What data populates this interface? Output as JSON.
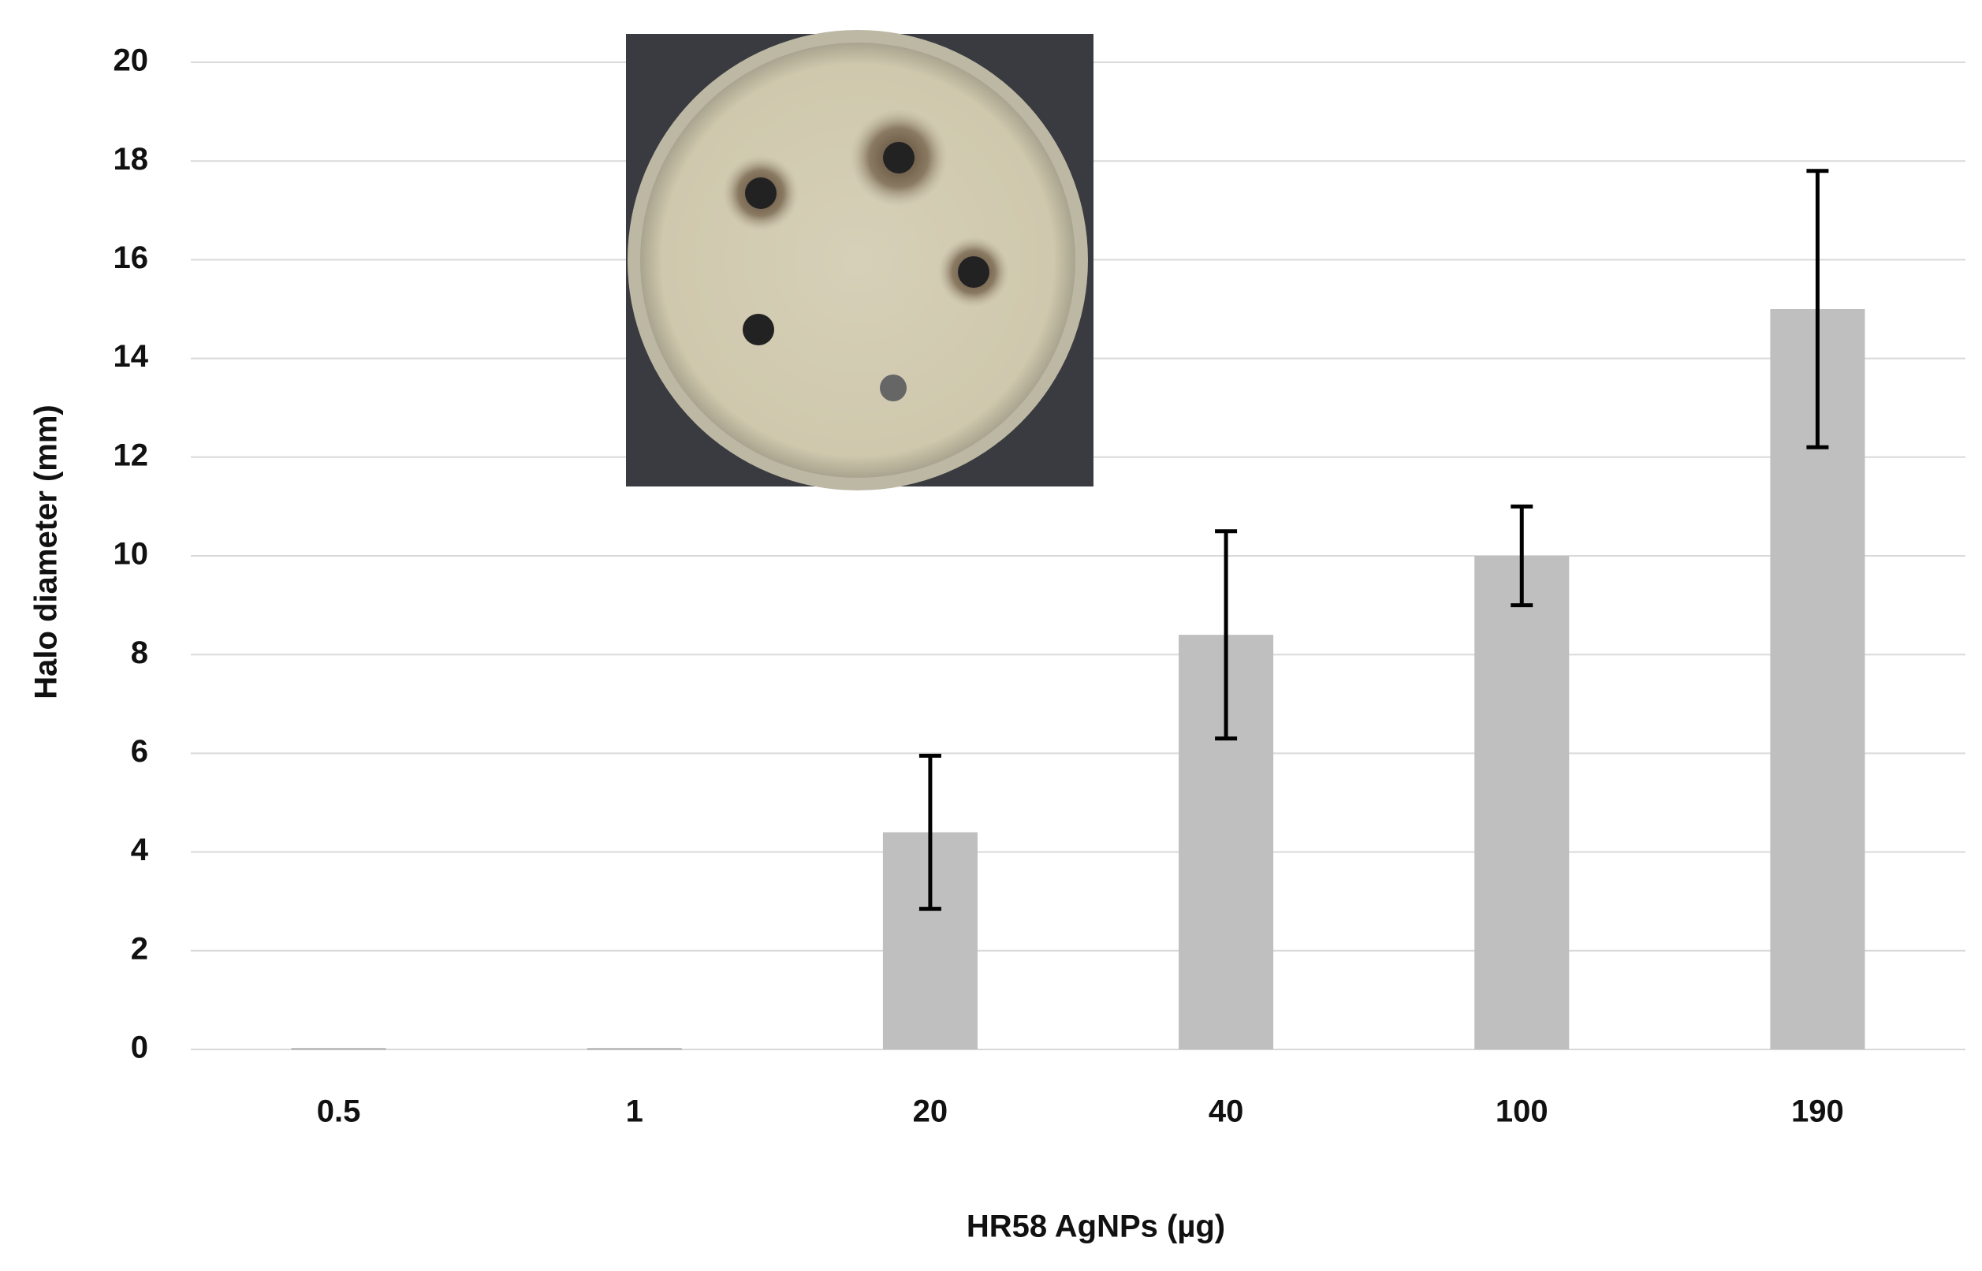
{
  "chart_data": {
    "type": "bar",
    "x_label": "HR58 AgNPs (µg)",
    "y_label": "Halo diameter (mm)",
    "categories": [
      "0.5",
      "1",
      "20",
      "40",
      "100",
      "190"
    ],
    "values": [
      0,
      0,
      4.4,
      8.4,
      10,
      15
    ],
    "errors": [
      0,
      0,
      1.55,
      2.1,
      1,
      2.8
    ],
    "color": "#bfbfbf",
    "ylim": [
      0,
      20
    ],
    "yticks": [
      0,
      2,
      4,
      6,
      8,
      10,
      12,
      14,
      16,
      18,
      20
    ],
    "grid": true
  }
}
